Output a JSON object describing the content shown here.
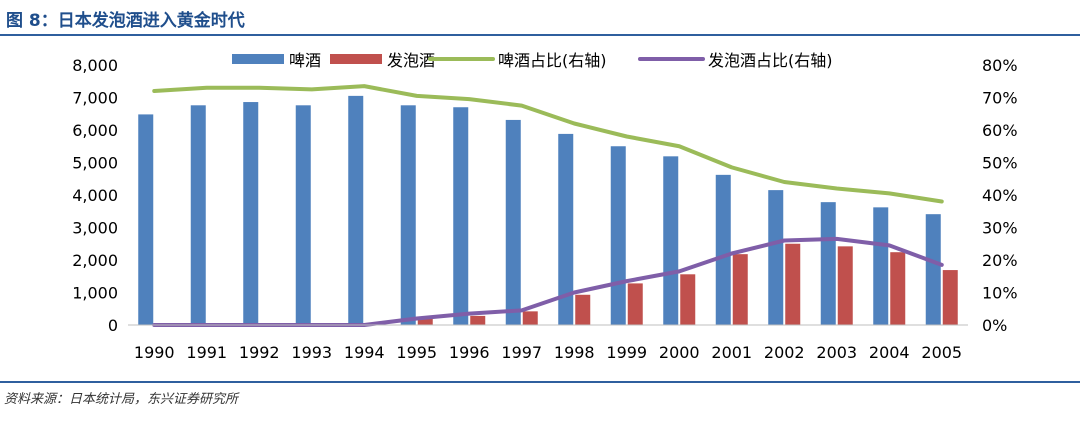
{
  "figure": {
    "title": "图 8：日本发泡酒进入黄金时代",
    "source": "资料来源：日本统计局，东兴证券研究所"
  },
  "chart_data": {
    "type": "bar",
    "categories": [
      "1990",
      "1991",
      "1992",
      "1993",
      "1994",
      "1995",
      "1996",
      "1997",
      "1998",
      "1999",
      "2000",
      "2001",
      "2002",
      "2003",
      "2004",
      "2005"
    ],
    "series": [
      {
        "name": "啤酒",
        "kind": "bar",
        "axis": "left",
        "color": "#4f81bd",
        "values": [
          6480,
          6760,
          6860,
          6760,
          7050,
          6760,
          6700,
          6310,
          5880,
          5500,
          5190,
          4620,
          4150,
          3780,
          3620,
          3410
        ]
      },
      {
        "name": "发泡酒",
        "kind": "bar",
        "axis": "left",
        "color": "#c0504d",
        "values": [
          0,
          0,
          0,
          0,
          0,
          200,
          280,
          420,
          930,
          1280,
          1560,
          2180,
          2500,
          2420,
          2240,
          1690
        ]
      },
      {
        "name": "啤酒占比(右轴)",
        "kind": "line",
        "axis": "right",
        "color": "#9bbb59",
        "values": [
          72,
          73,
          73,
          72.5,
          73.5,
          70.5,
          69.5,
          67.5,
          62,
          58,
          55,
          48.5,
          44,
          42,
          40.5,
          38
        ]
      },
      {
        "name": "发泡酒占比(右轴)",
        "kind": "line",
        "axis": "right",
        "color": "#7f5ea8",
        "values": [
          0,
          0,
          0,
          0,
          0,
          2,
          3.5,
          4.5,
          10,
          13.5,
          16.5,
          22,
          26,
          26.5,
          24.5,
          18.5
        ]
      }
    ],
    "y_left": {
      "min": 0,
      "max": 8000,
      "ticks": [
        "0",
        "1,000",
        "2,000",
        "3,000",
        "4,000",
        "5,000",
        "6,000",
        "7,000",
        "8,000"
      ]
    },
    "y_right": {
      "min": 0,
      "max": 80,
      "ticks": [
        "0%",
        "10%",
        "20%",
        "30%",
        "40%",
        "50%",
        "60%",
        "70%",
        "80%"
      ]
    },
    "legend_position": "top-center"
  }
}
